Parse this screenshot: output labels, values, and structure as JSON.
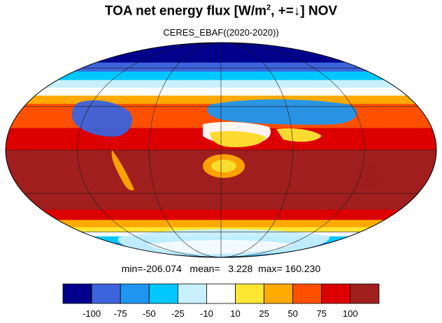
{
  "title": {
    "main": "TOA net energy flux  [W/m",
    "sup": "2",
    "rest": ", +=↓] NOV"
  },
  "subtitle": "CERES_EBAF((2020-2020))",
  "stats": {
    "min_label": "min=",
    "min": "-206.074",
    "mean_label": "mean=",
    "mean": "3.228",
    "max_label": "max=",
    "max": "160.230"
  },
  "colorbar": {
    "colors": [
      "#00008c",
      "#3c64dc",
      "#1e96f0",
      "#00c8ff",
      "#c8f0ff",
      "#ffffff",
      "#ffe632",
      "#ffaa00",
      "#ff5000",
      "#dc0000",
      "#a01e1e"
    ],
    "tick_labels": [
      "-100",
      "-75",
      "-50",
      "-25",
      "-10",
      "10",
      "25",
      "50",
      "75",
      "100"
    ]
  },
  "map": {
    "projection": "mollweide",
    "zonal_bands": [
      {
        "lat": 90,
        "value": -120
      },
      {
        "lat": 75,
        "value": -110
      },
      {
        "lat": 65,
        "value": -95
      },
      {
        "lat": 57,
        "value": -60
      },
      {
        "lat": 50,
        "value": -30
      },
      {
        "lat": 44,
        "value": -5
      },
      {
        "lat": 38,
        "value": 20
      },
      {
        "lat": 32,
        "value": 40
      },
      {
        "lat": 25,
        "value": 60
      },
      {
        "lat": 15,
        "value": 80
      },
      {
        "lat": 0,
        "value": 95
      },
      {
        "lat": -15,
        "value": 105
      },
      {
        "lat": -30,
        "value": 110
      },
      {
        "lat": -42,
        "value": 95
      },
      {
        "lat": -50,
        "value": 60
      },
      {
        "lat": -56,
        "value": 30
      },
      {
        "lat": -60,
        "value": 5
      },
      {
        "lat": -64,
        "value": -25
      },
      {
        "lat": -70,
        "value": -45
      },
      {
        "lat": -80,
        "value": -60
      },
      {
        "lat": -90,
        "value": -70
      }
    ]
  }
}
